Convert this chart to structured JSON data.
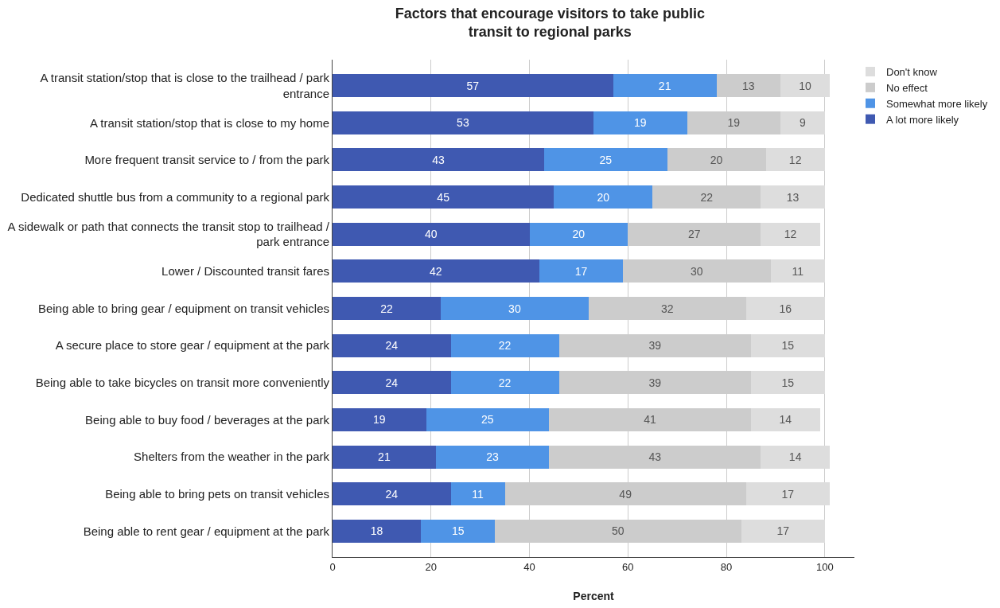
{
  "chart_data": {
    "type": "bar",
    "orientation": "horizontal",
    "stacked": true,
    "data_labels": true,
    "title": "Factors that encourage visitors to take public transit to regional parks",
    "xlabel": "Percent",
    "categories": [
      "A transit station/stop that is close to the trailhead / park entrance",
      "A transit station/stop that is close to my home",
      "More frequent transit service to / from the park",
      "Dedicated shuttle bus from a community to a regional park",
      "A sidewalk or path that connects the transit stop to trailhead / park entrance",
      "Lower / Discounted transit fares",
      "Being able to bring gear / equipment on transit vehicles",
      "A secure place to store gear / equipment at the park",
      "Being able to take bicycles on transit more conveniently",
      "Being able to buy food / beverages at the park",
      "Shelters from the weather in the park",
      "Being able to bring pets on transit vehicles",
      "Being able to rent gear / equipment at the park"
    ],
    "series": [
      {
        "name": "A lot more likely",
        "color": "#3f59b1",
        "values": [
          57,
          53,
          43,
          45,
          40,
          42,
          22,
          24,
          24,
          19,
          21,
          24,
          18
        ]
      },
      {
        "name": "Somewhat more likely",
        "color": "#4f94e6",
        "values": [
          21,
          19,
          25,
          20,
          20,
          17,
          30,
          22,
          22,
          25,
          23,
          11,
          15
        ]
      },
      {
        "name": "No effect",
        "color": "#cccccc",
        "values": [
          13,
          19,
          20,
          22,
          27,
          30,
          32,
          39,
          39,
          41,
          43,
          49,
          50
        ]
      },
      {
        "name": "Don't know",
        "color": "#dddddd",
        "values": [
          10,
          9,
          12,
          13,
          12,
          11,
          16,
          15,
          15,
          14,
          14,
          17,
          17
        ]
      }
    ],
    "xlim": [
      0,
      106
    ],
    "xticks": [
      0,
      20,
      40,
      60,
      80,
      100
    ],
    "grid": "x",
    "legend": "top right"
  }
}
